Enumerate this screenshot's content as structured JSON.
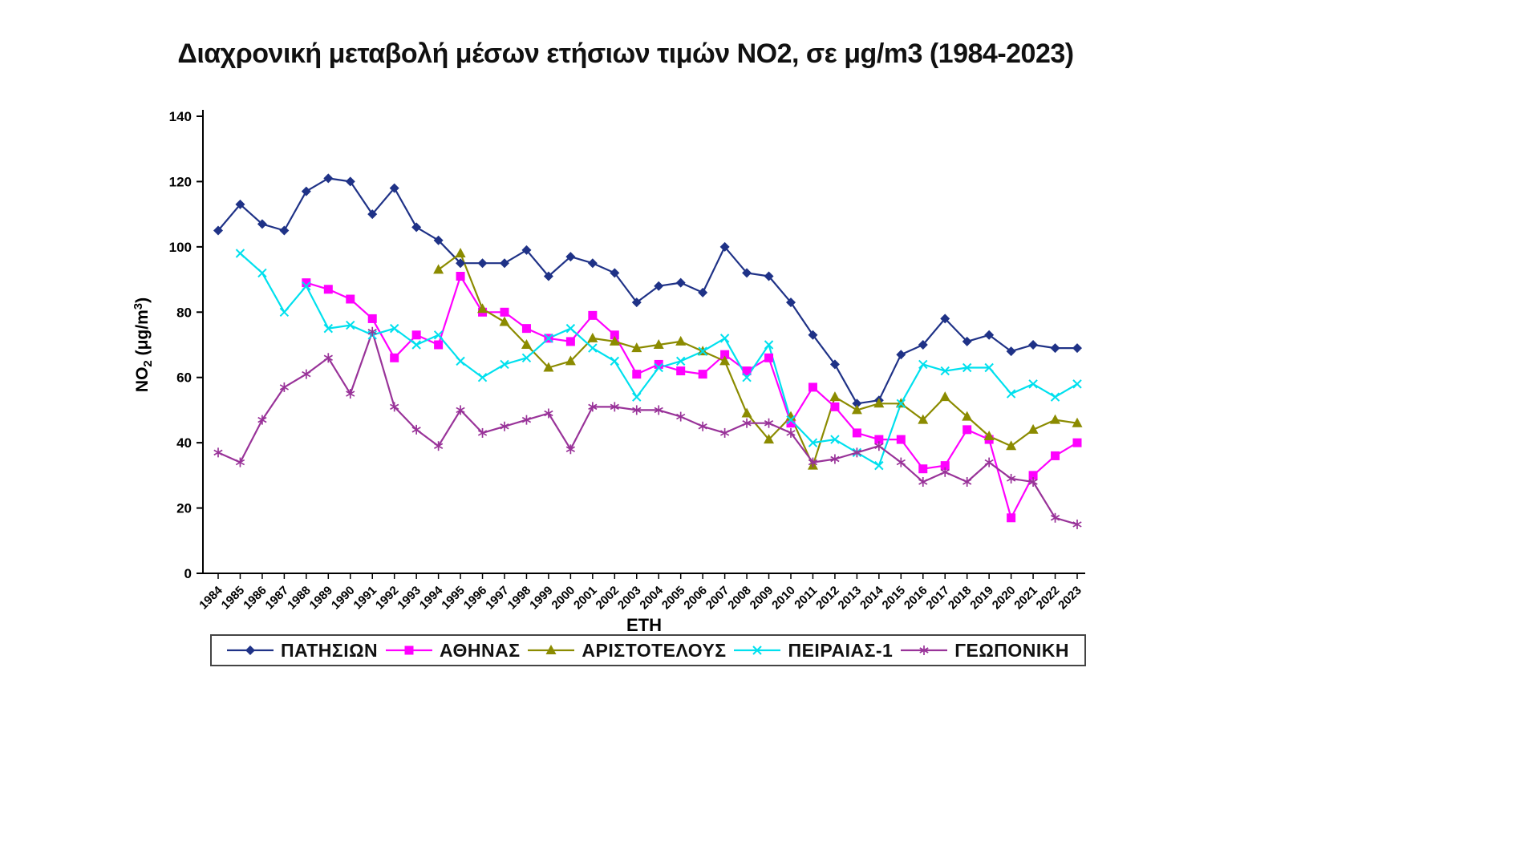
{
  "title": "Διαχρονική μεταβολή μέσων ετήσιων τιμών NO2, σε μg/m3 (1984-2023)",
  "chart_data": {
    "type": "line",
    "title": "Διαχρονική μεταβολή μέσων ετήσιων τιμών NO2, σε μg/m3 (1984-2023)",
    "xlabel": "ΕΤΗ",
    "ylabel": "NO2 (μg/m3)",
    "ylabel_parts": {
      "prefix": "NO",
      "sub": "2",
      "mid": " (μg/m",
      "sup": "3",
      "suffix": ")"
    },
    "ylim": [
      0,
      140
    ],
    "y_tick_step": 20,
    "grid": false,
    "legend_position": "bottom",
    "categories": [
      "1984",
      "1985",
      "1986",
      "1987",
      "1988",
      "1989",
      "1990",
      "1991",
      "1992",
      "1993",
      "1994",
      "1995",
      "1996",
      "1997",
      "1998",
      "1999",
      "2000",
      "2001",
      "2002",
      "2003",
      "2004",
      "2005",
      "2006",
      "2007",
      "2008",
      "2009",
      "2010",
      "2011",
      "2012",
      "2013",
      "2014",
      "2015",
      "2016",
      "2017",
      "2018",
      "2019",
      "2020",
      "2021",
      "2022",
      "2023"
    ],
    "series": [
      {
        "name": "ΠΑΤΗΣΙΩΝ",
        "color": "#1F3287",
        "marker": "diamond",
        "values": [
          105,
          113,
          107,
          105,
          117,
          121,
          120,
          110,
          118,
          106,
          102,
          95,
          95,
          95,
          99,
          91,
          97,
          95,
          92,
          83,
          88,
          89,
          86,
          100,
          92,
          91,
          83,
          73,
          64,
          52,
          53,
          67,
          70,
          78,
          71,
          73,
          68,
          70,
          69,
          69
        ]
      },
      {
        "name": "ΑΘΗΝΑΣ",
        "color": "#FF00FF",
        "marker": "square",
        "values": [
          null,
          null,
          null,
          null,
          89,
          87,
          84,
          78,
          66,
          73,
          70,
          91,
          80,
          80,
          75,
          72,
          71,
          79,
          73,
          61,
          64,
          62,
          61,
          67,
          62,
          66,
          46,
          57,
          51,
          43,
          41,
          41,
          32,
          33,
          44,
          41,
          17,
          30,
          36,
          40
        ]
      },
      {
        "name": "ΑΡΙΣΤΟΤΕΛΟΥΣ",
        "color": "#8B8B00",
        "marker": "triangle",
        "values": [
          null,
          null,
          null,
          null,
          null,
          null,
          null,
          null,
          null,
          null,
          93,
          98,
          81,
          77,
          70,
          63,
          65,
          72,
          71,
          69,
          70,
          71,
          68,
          65,
          49,
          41,
          48,
          33,
          54,
          50,
          52,
          52,
          47,
          54,
          48,
          42,
          39,
          44,
          47,
          46
        ]
      },
      {
        "name": "ΠΕΙΡΑΙΑΣ-1",
        "color": "#00E0EE",
        "marker": "x",
        "values": [
          null,
          98,
          92,
          80,
          88,
          75,
          76,
          73,
          75,
          70,
          73,
          65,
          60,
          64,
          66,
          72,
          75,
          69,
          65,
          54,
          63,
          65,
          68,
          72,
          60,
          70,
          47,
          40,
          41,
          37,
          33,
          52,
          64,
          62,
          63,
          63,
          55,
          58,
          54,
          58
        ]
      },
      {
        "name": "ΓΕΩΠΟΝΙΚΗ",
        "color": "#993399",
        "marker": "asterisk",
        "values": [
          37,
          34,
          47,
          57,
          61,
          66,
          55,
          74,
          51,
          44,
          39,
          50,
          43,
          45,
          47,
          49,
          38,
          51,
          51,
          50,
          50,
          48,
          45,
          43,
          46,
          46,
          43,
          34,
          35,
          37,
          39,
          34,
          28,
          31,
          28,
          34,
          29,
          28,
          17,
          15
        ]
      }
    ]
  }
}
